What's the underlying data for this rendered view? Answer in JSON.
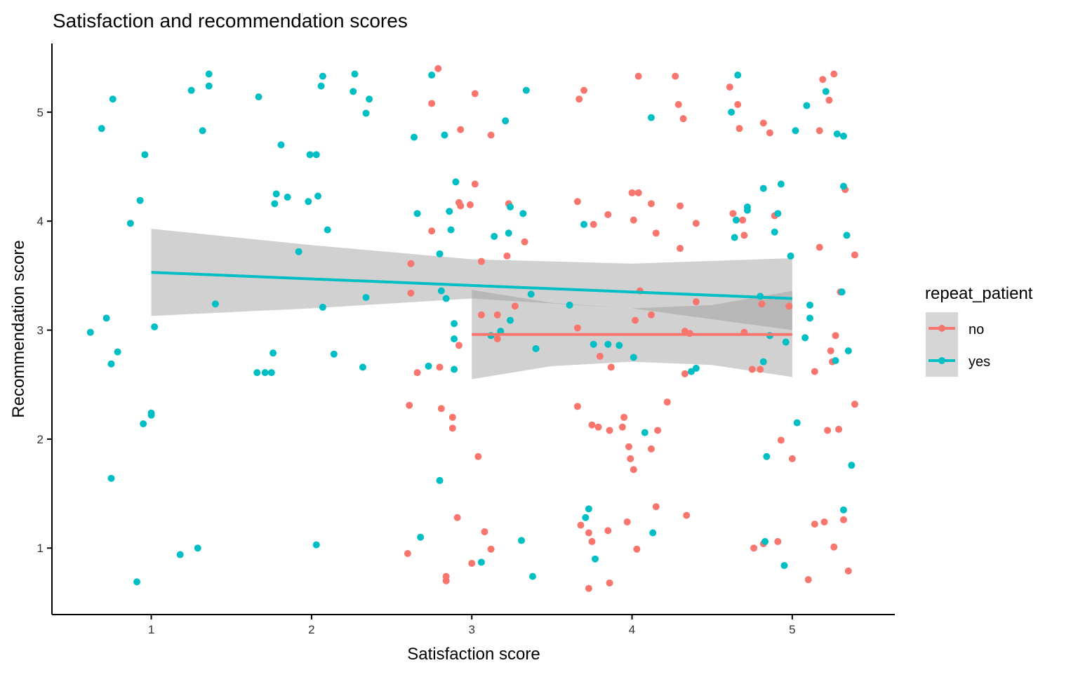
{
  "chart_data": {
    "type": "scatter",
    "title": "Satisfaction and recommendation scores",
    "xlabel": "Satisfaction score",
    "ylabel": "Recommendation score",
    "xlim": [
      0.38,
      5.64
    ],
    "ylim": [
      0.39,
      5.63
    ],
    "x_ticks": [
      1,
      2,
      3,
      4,
      5
    ],
    "y_ticks": [
      1,
      2,
      3,
      4,
      5
    ],
    "grid": false,
    "legend": {
      "title": "repeat_patient",
      "position": "right"
    },
    "series": [
      {
        "name": "no",
        "color": "#F8766D",
        "points": [
          [
            2.6,
            0.95
          ],
          [
            2.61,
            2.31
          ],
          [
            2.62,
            3.61
          ],
          [
            2.62,
            3.34
          ],
          [
            2.66,
            2.61
          ],
          [
            2.75,
            5.08
          ],
          [
            2.75,
            3.91
          ],
          [
            2.79,
            5.4
          ],
          [
            2.8,
            2.66
          ],
          [
            2.81,
            2.28
          ],
          [
            2.84,
            0.74
          ],
          [
            2.84,
            0.7
          ],
          [
            2.88,
            2.2
          ],
          [
            2.88,
            2.1
          ],
          [
            2.91,
            1.28
          ],
          [
            2.92,
            2.86
          ],
          [
            2.93,
            4.84
          ],
          [
            2.92,
            4.17
          ],
          [
            2.93,
            4.14
          ],
          [
            2.99,
            4.15
          ],
          [
            3.02,
            5.17
          ],
          [
            3.02,
            4.34
          ],
          [
            3.04,
            1.84
          ],
          [
            3.06,
            3.14
          ],
          [
            3.06,
            3.63
          ],
          [
            3.08,
            1.15
          ],
          [
            3.12,
            0.99
          ],
          [
            3.12,
            4.79
          ],
          [
            3.16,
            3.14
          ],
          [
            3.16,
            2.92
          ],
          [
            3.22,
            3.68
          ],
          [
            3.23,
            4.16
          ],
          [
            3.27,
            3.22
          ],
          [
            3.33,
            3.81
          ],
          [
            3.0,
            0.86
          ],
          [
            3.67,
            5.12
          ],
          [
            3.7,
            5.2
          ],
          [
            3.66,
            2.3
          ],
          [
            3.68,
            1.21
          ],
          [
            3.73,
            1.14
          ],
          [
            3.75,
            1.06
          ],
          [
            3.73,
            0.63
          ],
          [
            3.66,
            3.02
          ],
          [
            3.66,
            4.18
          ],
          [
            3.76,
            3.97
          ],
          [
            3.75,
            2.13
          ],
          [
            3.79,
            2.11
          ],
          [
            3.8,
            2.76
          ],
          [
            3.85,
            4.06
          ],
          [
            3.86,
            0.68
          ],
          [
            3.85,
            1.16
          ],
          [
            3.86,
            2.08
          ],
          [
            3.87,
            2.66
          ],
          [
            3.94,
            2.11
          ],
          [
            3.95,
            2.2
          ],
          [
            3.97,
            1.24
          ],
          [
            3.98,
            1.93
          ],
          [
            3.99,
            1.82
          ],
          [
            4.01,
            4.01
          ],
          [
            4.0,
            4.26
          ],
          [
            4.01,
            1.72
          ],
          [
            4.02,
            3.09
          ],
          [
            4.03,
            0.99
          ],
          [
            4.04,
            5.33
          ],
          [
            4.04,
            4.26
          ],
          [
            4.05,
            3.36
          ],
          [
            4.12,
            1.91
          ],
          [
            4.12,
            4.16
          ],
          [
            4.12,
            3.14
          ],
          [
            4.15,
            3.89
          ],
          [
            4.15,
            1.38
          ],
          [
            4.16,
            2.08
          ],
          [
            4.22,
            2.34
          ],
          [
            4.27,
            5.33
          ],
          [
            4.29,
            5.07
          ],
          [
            4.3,
            4.14
          ],
          [
            4.3,
            3.75
          ],
          [
            4.32,
            4.94
          ],
          [
            4.33,
            2.99
          ],
          [
            4.34,
            1.3
          ],
          [
            4.33,
            2.6
          ],
          [
            4.36,
            2.97
          ],
          [
            4.4,
            3.98
          ],
          [
            4.4,
            3.26
          ],
          [
            4.61,
            5.23
          ],
          [
            4.63,
            4.07
          ],
          [
            4.66,
            5.07
          ],
          [
            4.67,
            4.85
          ],
          [
            4.69,
            4.01
          ],
          [
            4.7,
            3.87
          ],
          [
            4.7,
            2.98
          ],
          [
            4.75,
            2.64
          ],
          [
            4.76,
            1.0
          ],
          [
            4.8,
            2.64
          ],
          [
            4.81,
            3.24
          ],
          [
            4.82,
            4.9
          ],
          [
            4.82,
            1.04
          ],
          [
            4.86,
            4.81
          ],
          [
            4.89,
            4.05
          ],
          [
            4.91,
            1.06
          ],
          [
            4.93,
            1.99
          ],
          [
            4.98,
            3.22
          ],
          [
            5.0,
            1.82
          ],
          [
            5.1,
            0.71
          ],
          [
            5.14,
            2.62
          ],
          [
            5.17,
            3.76
          ],
          [
            5.14,
            1.22
          ],
          [
            5.17,
            4.83
          ],
          [
            5.19,
            5.3
          ],
          [
            5.2,
            1.24
          ],
          [
            5.22,
            2.08
          ],
          [
            5.23,
            5.11
          ],
          [
            5.24,
            2.81
          ],
          [
            5.25,
            2.71
          ],
          [
            5.27,
            2.95
          ],
          [
            5.26,
            1.01
          ],
          [
            5.26,
            5.35
          ],
          [
            5.29,
            2.09
          ],
          [
            5.3,
            3.35
          ],
          [
            5.32,
            1.26
          ],
          [
            5.33,
            4.29
          ],
          [
            5.35,
            0.79
          ],
          [
            5.39,
            3.69
          ],
          [
            5.39,
            2.32
          ]
        ],
        "fit": {
          "x": [
            3,
            5
          ],
          "y": [
            2.96,
            2.96
          ]
        },
        "confidence_band": {
          "x": [
            3,
            3.5,
            4,
            4.5,
            5
          ],
          "lower": [
            2.55,
            2.67,
            2.71,
            2.68,
            2.57
          ],
          "upper": [
            3.37,
            3.25,
            3.2,
            3.23,
            3.36
          ]
        }
      },
      {
        "name": "yes",
        "color": "#00BFC4",
        "points": [
          [
            0.62,
            2.98
          ],
          [
            0.69,
            4.85
          ],
          [
            0.72,
            3.11
          ],
          [
            0.75,
            2.69
          ],
          [
            0.75,
            1.64
          ],
          [
            0.76,
            5.12
          ],
          [
            0.79,
            2.8
          ],
          [
            0.87,
            3.98
          ],
          [
            0.91,
            0.69
          ],
          [
            0.93,
            4.19
          ],
          [
            0.95,
            2.14
          ],
          [
            0.96,
            4.61
          ],
          [
            1.0,
            2.24
          ],
          [
            1.0,
            2.22
          ],
          [
            1.02,
            3.03
          ],
          [
            1.18,
            0.94
          ],
          [
            1.25,
            5.2
          ],
          [
            1.29,
            1.0
          ],
          [
            1.32,
            4.83
          ],
          [
            1.36,
            5.35
          ],
          [
            1.36,
            5.24
          ],
          [
            1.4,
            3.24
          ],
          [
            1.66,
            2.61
          ],
          [
            1.67,
            5.14
          ],
          [
            1.71,
            2.61
          ],
          [
            1.75,
            2.61
          ],
          [
            1.76,
            2.79
          ],
          [
            1.77,
            4.16
          ],
          [
            1.78,
            4.25
          ],
          [
            1.81,
            4.7
          ],
          [
            1.85,
            4.22
          ],
          [
            1.92,
            3.72
          ],
          [
            1.98,
            4.18
          ],
          [
            1.99,
            4.61
          ],
          [
            2.03,
            4.61
          ],
          [
            2.03,
            1.03
          ],
          [
            2.04,
            4.23
          ],
          [
            2.06,
            5.24
          ],
          [
            2.07,
            3.21
          ],
          [
            2.07,
            5.33
          ],
          [
            2.1,
            3.92
          ],
          [
            2.14,
            2.78
          ],
          [
            2.26,
            5.19
          ],
          [
            2.27,
            5.35
          ],
          [
            2.32,
            2.66
          ],
          [
            2.34,
            4.99
          ],
          [
            2.34,
            3.3
          ],
          [
            2.36,
            5.12
          ],
          [
            2.64,
            4.77
          ],
          [
            2.66,
            4.07
          ],
          [
            2.68,
            1.1
          ],
          [
            2.73,
            2.67
          ],
          [
            2.75,
            5.34
          ],
          [
            2.8,
            3.7
          ],
          [
            2.8,
            1.62
          ],
          [
            2.81,
            3.36
          ],
          [
            2.83,
            4.79
          ],
          [
            2.84,
            3.29
          ],
          [
            2.86,
            4.09
          ],
          [
            2.87,
            3.92
          ],
          [
            2.89,
            3.06
          ],
          [
            2.89,
            2.92
          ],
          [
            2.89,
            2.64
          ],
          [
            2.9,
            4.36
          ],
          [
            3.06,
            0.87
          ],
          [
            3.12,
            2.95
          ],
          [
            3.14,
            3.86
          ],
          [
            3.18,
            2.99
          ],
          [
            3.21,
            4.92
          ],
          [
            3.23,
            3.89
          ],
          [
            3.24,
            4.13
          ],
          [
            3.24,
            3.09
          ],
          [
            3.31,
            1.07
          ],
          [
            3.32,
            4.07
          ],
          [
            3.34,
            5.2
          ],
          [
            3.37,
            3.33
          ],
          [
            3.38,
            0.74
          ],
          [
            3.4,
            2.83
          ],
          [
            3.61,
            3.23
          ],
          [
            3.7,
            3.97
          ],
          [
            3.71,
            1.28
          ],
          [
            3.73,
            1.36
          ],
          [
            3.76,
            2.87
          ],
          [
            3.77,
            0.9
          ],
          [
            3.85,
            2.87
          ],
          [
            3.92,
            2.86
          ],
          [
            4.01,
            2.75
          ],
          [
            4.08,
            2.06
          ],
          [
            4.12,
            4.95
          ],
          [
            4.13,
            1.14
          ],
          [
            4.37,
            2.62
          ],
          [
            4.4,
            2.65
          ],
          [
            4.62,
            5.0
          ],
          [
            4.64,
            3.85
          ],
          [
            4.65,
            4.01
          ],
          [
            4.66,
            5.34
          ],
          [
            4.72,
            4.13
          ],
          [
            4.72,
            4.1
          ],
          [
            4.8,
            3.31
          ],
          [
            4.82,
            4.3
          ],
          [
            4.82,
            2.71
          ],
          [
            4.83,
            1.06
          ],
          [
            4.84,
            1.84
          ],
          [
            4.86,
            2.95
          ],
          [
            4.89,
            3.9
          ],
          [
            4.91,
            4.07
          ],
          [
            4.93,
            4.34
          ],
          [
            4.95,
            0.84
          ],
          [
            4.96,
            2.89
          ],
          [
            4.99,
            3.68
          ],
          [
            5.02,
            4.83
          ],
          [
            5.03,
            2.15
          ],
          [
            5.08,
            2.93
          ],
          [
            5.09,
            5.06
          ],
          [
            5.11,
            3.23
          ],
          [
            5.11,
            3.11
          ],
          [
            5.21,
            5.19
          ],
          [
            5.27,
            2.72
          ],
          [
            5.28,
            4.8
          ],
          [
            5.31,
            3.35
          ],
          [
            5.32,
            4.32
          ],
          [
            5.32,
            1.35
          ],
          [
            5.32,
            4.78
          ],
          [
            5.34,
            3.87
          ],
          [
            5.35,
            2.81
          ],
          [
            5.37,
            1.76
          ]
        ],
        "fit": {
          "x": [
            1,
            5
          ],
          "y": [
            3.53,
            3.29
          ]
        },
        "confidence_band": {
          "x": [
            1,
            2,
            3,
            4,
            5
          ],
          "lower": [
            3.13,
            3.2,
            3.29,
            3.2,
            3.0
          ],
          "upper": [
            3.93,
            3.78,
            3.65,
            3.61,
            3.66
          ]
        }
      }
    ]
  }
}
